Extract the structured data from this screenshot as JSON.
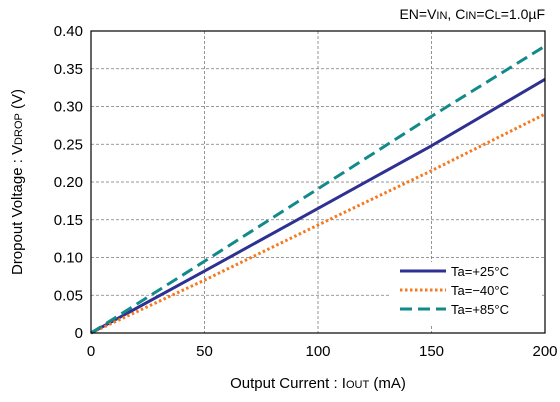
{
  "chart_data": {
    "type": "line",
    "title": "",
    "conditions": {
      "en": "EN",
      "vin": "IN",
      "cin": "IN",
      "cl": "L",
      "value": "=1.0µF"
    },
    "xlabel": {
      "prefix": "Output Current : I",
      "sub": "OUT",
      "suffix": " (mA)"
    },
    "ylabel": {
      "prefix": "Dropout Voltage : V",
      "sub": "DROP",
      "suffix": " (V)"
    },
    "xlim": [
      0,
      200
    ],
    "ylim": [
      0,
      0.4
    ],
    "x_ticks": [
      0,
      50,
      100,
      150,
      200
    ],
    "x_tick_labels": [
      "0",
      "50",
      "100",
      "150",
      "200"
    ],
    "y_ticks": [
      0,
      0.05,
      0.1,
      0.15,
      0.2,
      0.25,
      0.3,
      0.35,
      0.4
    ],
    "y_tick_labels": [
      "0",
      "0.05",
      "0.10",
      "0.15",
      "0.20",
      "0.25",
      "0.30",
      "0.35",
      "0.40"
    ],
    "grid": true,
    "grid_style": "dashed",
    "legend_position": "bottom-right",
    "series": [
      {
        "name": "Ta=+25°C",
        "color": "#2e3192",
        "style": "solid",
        "x": [
          0,
          50,
          100,
          150,
          200
        ],
        "y": [
          0,
          0.082,
          0.165,
          0.248,
          0.336
        ]
      },
      {
        "name": "Ta=−40°C",
        "color": "#f47920",
        "style": "dotted",
        "x": [
          0,
          50,
          100,
          150,
          200
        ],
        "y": [
          0,
          0.07,
          0.143,
          0.215,
          0.29
        ]
      },
      {
        "name": "Ta=+85°C",
        "color": "#138a8a",
        "style": "dashed",
        "x": [
          0,
          50,
          100,
          150,
          200
        ],
        "y": [
          0,
          0.095,
          0.191,
          0.287,
          0.38
        ]
      }
    ]
  }
}
